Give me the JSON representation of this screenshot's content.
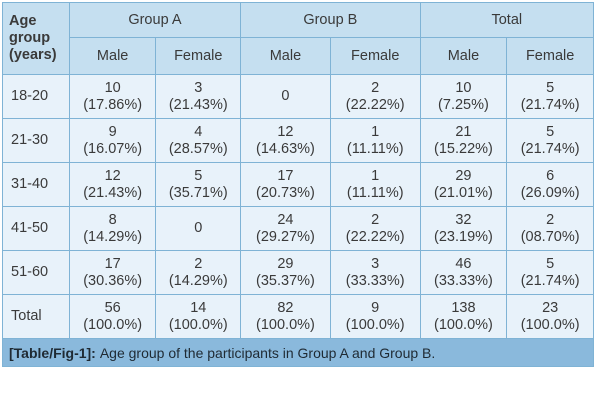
{
  "table": {
    "corner_header": [
      "Age",
      "group",
      "(years)"
    ],
    "groups": [
      "Group A",
      "Group B",
      "Total"
    ],
    "subheaders": [
      "Male",
      "Female",
      "Male",
      "Female",
      "Male",
      "Female"
    ],
    "rows": [
      {
        "age": "18-20",
        "cells": [
          [
            "10",
            "(17.86%)"
          ],
          [
            "3",
            "(21.43%)"
          ],
          [
            "0",
            ""
          ],
          [
            "2",
            "(22.22%)"
          ],
          [
            "10",
            "(7.25%)"
          ],
          [
            "5",
            "(21.74%)"
          ]
        ]
      },
      {
        "age": "21-30",
        "cells": [
          [
            "9",
            "(16.07%)"
          ],
          [
            "4",
            "(28.57%)"
          ],
          [
            "12",
            "(14.63%)"
          ],
          [
            "1",
            "(11.11%)"
          ],
          [
            "21",
            "(15.22%)"
          ],
          [
            "5",
            "(21.74%)"
          ]
        ]
      },
      {
        "age": "31-40",
        "cells": [
          [
            "12",
            "(21.43%)"
          ],
          [
            "5",
            "(35.71%)"
          ],
          [
            "17",
            "(20.73%)"
          ],
          [
            "1",
            "(11.11%)"
          ],
          [
            "29",
            "(21.01%)"
          ],
          [
            "6",
            "(26.09%)"
          ]
        ]
      },
      {
        "age": "41-50",
        "cells": [
          [
            "8",
            "(14.29%)"
          ],
          [
            "0",
            ""
          ],
          [
            "24",
            "(29.27%)"
          ],
          [
            "2",
            "(22.22%)"
          ],
          [
            "32",
            "(23.19%)"
          ],
          [
            "2",
            "(08.70%)"
          ]
        ]
      },
      {
        "age": "51-60",
        "cells": [
          [
            "17",
            "(30.36%)"
          ],
          [
            "2",
            "(14.29%)"
          ],
          [
            "29",
            "(35.37%)"
          ],
          [
            "3",
            "(33.33%)"
          ],
          [
            "46",
            "(33.33%)"
          ],
          [
            "5",
            "(21.74%)"
          ]
        ]
      },
      {
        "age": "Total",
        "cells": [
          [
            "56",
            "(100.0%)"
          ],
          [
            "14",
            "(100.0%)"
          ],
          [
            "82",
            "(100.0%)"
          ],
          [
            "9",
            "(100.0%)"
          ],
          [
            "138",
            "(100.0%)"
          ],
          [
            "23",
            "(100.0%)"
          ]
        ]
      }
    ]
  },
  "caption": {
    "label": "[Table/Fig-1]:",
    "text": "Age group of the participants in Group A and Group B."
  },
  "colors": {
    "header_bg": "#c5dff0",
    "body_bg": "#e8f2fa",
    "caption_bg": "#8ab9dc",
    "border": "#7fb3d5"
  }
}
